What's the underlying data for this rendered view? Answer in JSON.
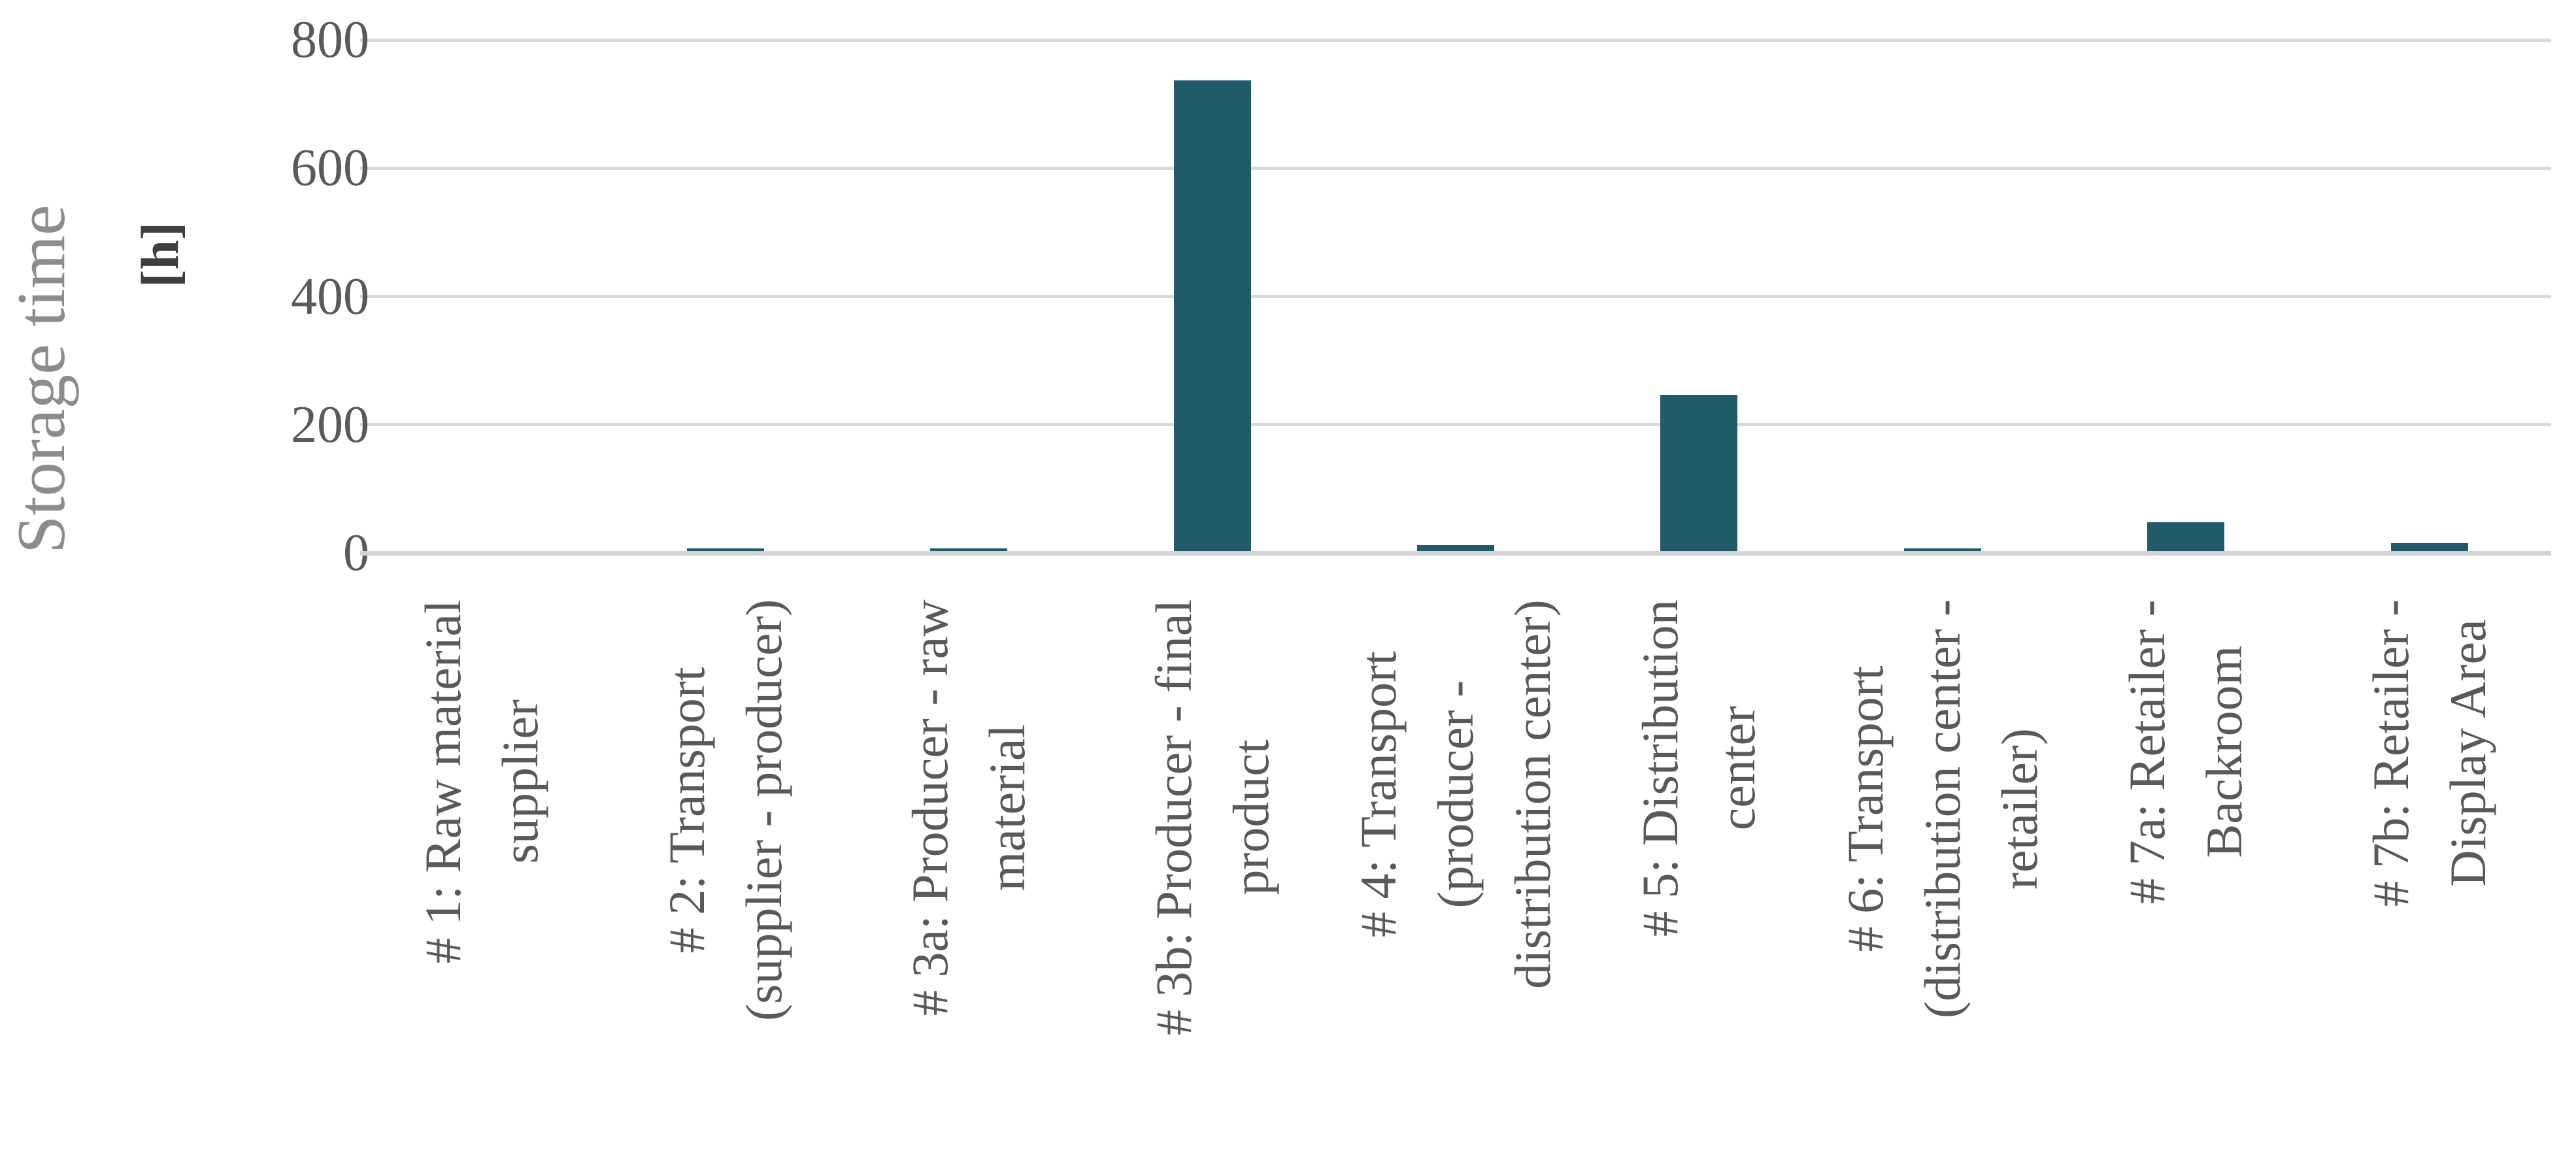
{
  "chart_data": {
    "type": "bar",
    "title": "",
    "ylabel": "Storage time",
    "ylabel_unit": "[h]",
    "xlabel": "",
    "ylim": [
      0,
      800
    ],
    "yticks": [
      0,
      200,
      400,
      600,
      800
    ],
    "grid": true,
    "legend_position": "none",
    "categories": [
      "# 1: Raw material supplier",
      "# 2: Transport (supplier - producer)",
      "# 3a: Producer - raw material",
      "# 3b: Producer - final product",
      "# 4: Transport (producer - distribution center)",
      "# 5: Distribution center",
      "# 6: Transport (distribution center - retailer)",
      "# 7a: Retailer - Backroom",
      "# 7b: Retailer - Display Area"
    ],
    "category_display_lines": [
      [
        "# 1: Raw material",
        "supplier"
      ],
      [
        "# 2: Transport",
        "(supplier - producer)"
      ],
      [
        "# 3a: Producer - raw",
        "material"
      ],
      [
        "# 3b: Producer - final",
        "product"
      ],
      [
        "# 4: Transport",
        "(producer -",
        "distribution center)"
      ],
      [
        "# 5: Distribution",
        "center"
      ],
      [
        "# 6: Transport",
        "(distribution center -",
        "retailer)"
      ],
      [
        "# 7a: Retailer -",
        "Backroom"
      ],
      [
        "# 7b: Retailer -",
        "Display Area"
      ]
    ],
    "values": [
      0,
      7,
      7,
      737,
      12,
      247,
      7,
      48,
      15
    ]
  },
  "colors": {
    "bar": "#215A68",
    "gridline": "#D9D9D9",
    "axis_line": "#D3D3D3",
    "tick_text": "#595959",
    "category_text": "#595959",
    "y_title_text": "#8C8C8C",
    "y_unit_text": "#3F3F3F",
    "background": "#FFFFFF"
  }
}
